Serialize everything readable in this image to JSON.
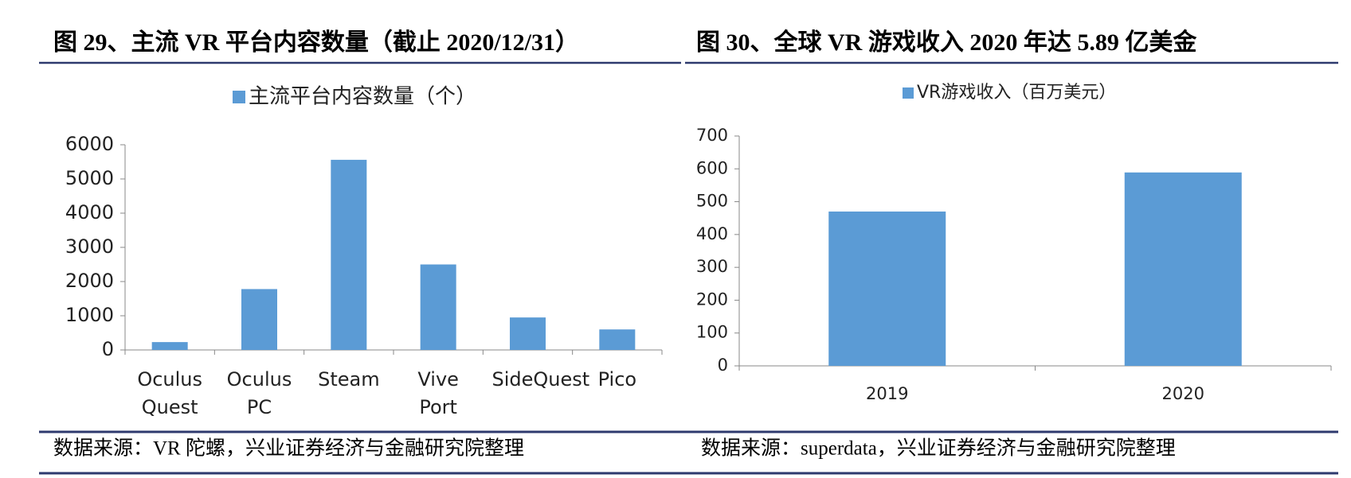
{
  "chart_data": [
    {
      "type": "bar",
      "title": "图 29、主流 VR 平台内容数量（截止 2020/12/31）",
      "categories": [
        "Oculus Quest",
        "Oculus PC",
        "Steam",
        "Vive Port",
        "SideQuest",
        "Pico"
      ],
      "series": [
        {
          "name": "主流平台内容数量（个）",
          "color": "#5b9bd5",
          "values": [
            230,
            1780,
            5560,
            2500,
            950,
            600
          ]
        }
      ],
      "ylim": [
        0,
        6000
      ],
      "yticks": [
        0,
        1000,
        2000,
        3000,
        4000,
        5000,
        6000
      ],
      "source": "数据来源：VR 陀螺，兴业证券经济与金融研究院整理"
    },
    {
      "type": "bar",
      "title": "图 30、全球 VR 游戏收入 2020 年达 5.89 亿美金",
      "categories": [
        "2019",
        "2020"
      ],
      "series": [
        {
          "name": "VR游戏收入（百万美元）",
          "color": "#5b9bd5",
          "values": [
            470,
            589
          ]
        }
      ],
      "ylim": [
        0,
        700
      ],
      "yticks": [
        0,
        100,
        200,
        300,
        400,
        500,
        600,
        700
      ],
      "source": "数据来源：superdata，兴业证券经济与金融研究院整理"
    }
  ]
}
